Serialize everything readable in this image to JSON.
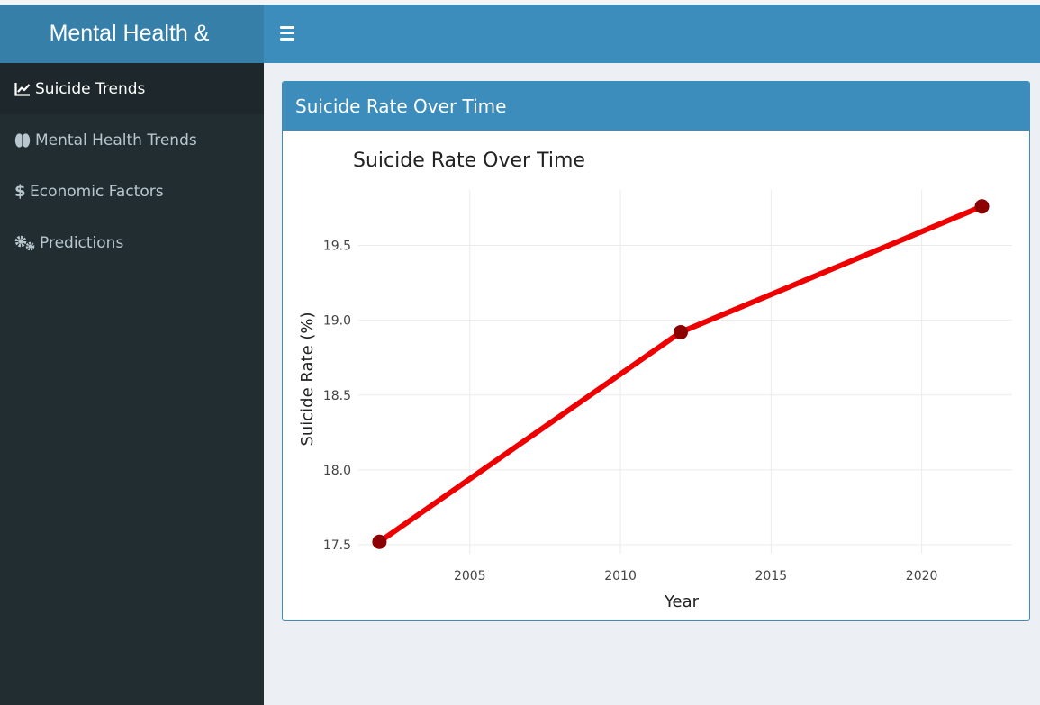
{
  "app": {
    "title": "Mental Health &"
  },
  "header": {
    "toggle_icon": "hamburger-menu-icon"
  },
  "sidebar": {
    "items": [
      {
        "label": "Suicide Trends",
        "icon": "line-chart-icon",
        "active": true
      },
      {
        "label": "Mental Health Trends",
        "icon": "brain-icon",
        "active": false
      },
      {
        "label": "Economic Factors",
        "icon": "dollar-icon",
        "active": false
      },
      {
        "label": "Predictions",
        "icon": "gears-icon",
        "active": false
      }
    ]
  },
  "box": {
    "title": "Suicide Rate Over Time"
  },
  "chart_data": {
    "type": "line",
    "title": "Suicide Rate Over Time",
    "xlabel": "Year",
    "ylabel": "Suicide Rate (%)",
    "x": [
      2002,
      2012,
      2022
    ],
    "values": [
      17.52,
      18.92,
      19.76
    ],
    "xlim": [
      2001.3,
      2023.0
    ],
    "ylim": [
      17.44,
      19.87
    ],
    "xticks": [
      2005,
      2010,
      2015,
      2020
    ],
    "yticks": [
      17.5,
      18.0,
      18.5,
      19.0,
      19.5
    ],
    "grid": true,
    "line_color": "#ee0000",
    "marker_color": "#8b0000"
  }
}
